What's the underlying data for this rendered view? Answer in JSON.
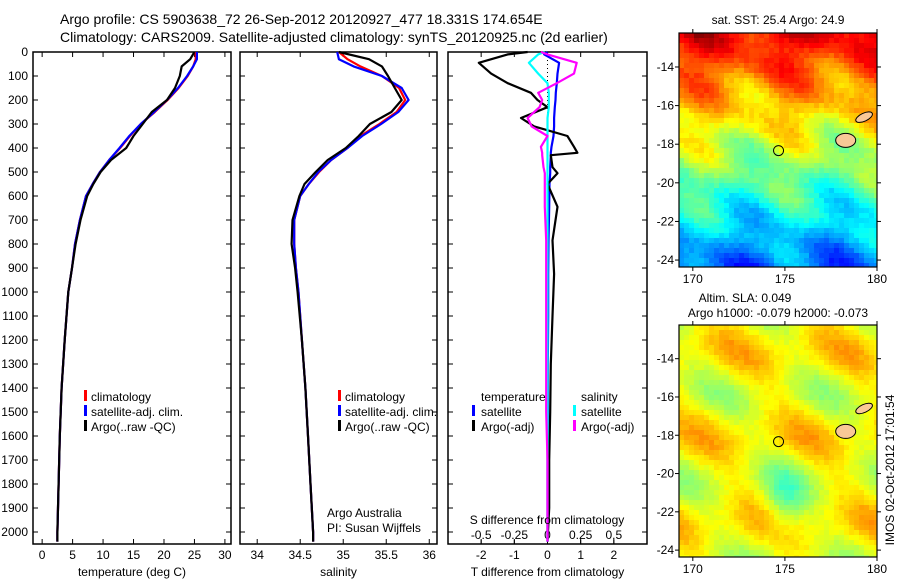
{
  "title": {
    "line1": "Argo profile: CS 5903638_72 26-Sep-2012 20120927_477 18.331S 174.654E",
    "line2": "Climatology: CARS2009. Satellite-adjusted climatology: synTS_20120925.nc (2d earlier)"
  },
  "credits": {
    "org": "Argo Australia",
    "pi": "PI: Susan Wijffels",
    "stamp": "IMOS 02-Oct-2012 17:01:54"
  },
  "colors": {
    "climatology": "#ff0000",
    "satellite": "#0000ff",
    "argo": "#000000",
    "sal_satellite": "#00ffff",
    "sal_argo": "#ff00ff"
  },
  "chart_data": [
    {
      "type": "line",
      "id": "temperature",
      "xlabel": "temperature (deg C)",
      "ylabel": "",
      "xlim": [
        -1.5,
        31
      ],
      "ylim": [
        2050,
        0
      ],
      "xticks": [
        0,
        5,
        10,
        15,
        20,
        25,
        30
      ],
      "xtick_labels": [
        "0",
        "5",
        "10",
        "15",
        "20",
        "25",
        "30"
      ],
      "yticks": [
        0,
        100,
        200,
        300,
        400,
        500,
        600,
        700,
        800,
        900,
        1000,
        1100,
        1200,
        1300,
        1400,
        1500,
        1600,
        1700,
        1800,
        1900,
        2000
      ],
      "yticks_labels": [
        "0",
        "100",
        "200",
        "300",
        "400",
        "500",
        "600",
        "700",
        "800",
        "900",
        "1000",
        "1100",
        "1200",
        "1300",
        "1400",
        "1500",
        "1600",
        "1700",
        "1800",
        "1900",
        "2000"
      ],
      "legend": [
        "climatology",
        "satellite-adj. clim.",
        "Argo(..raw -QC)"
      ],
      "depth": [
        0,
        30,
        60,
        100,
        150,
        200,
        250,
        300,
        350,
        400,
        450,
        500,
        550,
        600,
        700,
        800,
        900,
        1000,
        1200,
        1400,
        1600,
        1800,
        2000,
        2040
      ],
      "series": [
        {
          "name": "climatology",
          "color": "#ff0000",
          "values": [
            25.2,
            25.2,
            24.8,
            23.9,
            22.4,
            20.6,
            18.5,
            16.2,
            14.4,
            12.8,
            11.0,
            9.5,
            8.3,
            7.2,
            6.2,
            5.4,
            4.9,
            4.3,
            3.7,
            3.2,
            2.9,
            2.7,
            2.5,
            2.5
          ]
        },
        {
          "name": "satellite-adj. clim.",
          "color": "#0000ff",
          "values": [
            25.4,
            25.4,
            24.8,
            23.8,
            22.3,
            20.5,
            18.4,
            16.2,
            14.3,
            12.7,
            11.0,
            9.5,
            8.3,
            7.2,
            6.2,
            5.4,
            4.9,
            4.3,
            3.7,
            3.2,
            2.9,
            2.7,
            2.5,
            2.5
          ]
        },
        {
          "name": "Argo(..raw -QC)",
          "color": "#000000",
          "values": [
            25.0,
            24.3,
            22.9,
            22.6,
            21.8,
            20.5,
            18.0,
            16.5,
            15.0,
            13.8,
            11.3,
            9.6,
            8.4,
            7.4,
            6.3,
            5.5,
            4.9,
            4.3,
            3.7,
            3.2,
            2.9,
            2.7,
            2.5,
            2.5
          ]
        }
      ]
    },
    {
      "type": "line",
      "id": "salinity",
      "xlabel": "salinity",
      "xlim": [
        33.8,
        36.09
      ],
      "ylim": [
        2050,
        0
      ],
      "xticks": [
        34,
        34.5,
        35,
        35.5,
        36
      ],
      "xtick_labels": [
        "34",
        "34.5",
        "35",
        "35.5",
        "36"
      ],
      "legend": [
        "climatology",
        "satellite-adj. clim.",
        "Argo(..raw -QC)"
      ],
      "depth": [
        0,
        30,
        60,
        100,
        150,
        200,
        250,
        300,
        350,
        400,
        450,
        500,
        550,
        600,
        700,
        800,
        900,
        1000,
        1200,
        1400,
        1600,
        1800,
        2000,
        2040
      ],
      "series": [
        {
          "name": "climatology",
          "color": "#ff0000",
          "values": [
            34.95,
            35.05,
            35.2,
            35.45,
            35.65,
            35.72,
            35.62,
            35.42,
            35.2,
            35.05,
            34.86,
            34.72,
            34.6,
            34.5,
            34.43,
            34.43,
            34.45,
            34.48,
            34.52,
            34.56,
            34.59,
            34.62,
            34.65,
            34.65
          ]
        },
        {
          "name": "satellite-adj. clim.",
          "color": "#0000ff",
          "values": [
            34.93,
            34.95,
            35.12,
            35.45,
            35.68,
            35.76,
            35.64,
            35.44,
            35.22,
            35.05,
            34.86,
            34.71,
            34.6,
            34.5,
            34.43,
            34.43,
            34.45,
            34.48,
            34.52,
            34.56,
            34.59,
            34.62,
            34.65,
            34.65
          ]
        },
        {
          "name": "Argo(..raw -QC)",
          "color": "#000000",
          "values": [
            34.95,
            35.3,
            35.45,
            35.52,
            35.6,
            35.68,
            35.56,
            35.31,
            35.18,
            35.03,
            34.82,
            34.68,
            34.55,
            34.49,
            34.41,
            34.4,
            34.44,
            34.47,
            34.52,
            34.56,
            34.59,
            34.62,
            34.65,
            34.65
          ]
        }
      ]
    },
    {
      "type": "line",
      "id": "difference",
      "xlabel": "T difference from climatology",
      "xlabel2": "S difference from climatology",
      "xlim": [
        -3,
        3
      ],
      "xticks": [
        -2,
        -1,
        0,
        1,
        2
      ],
      "xtick_labels": [
        "-2",
        "-1",
        "0",
        "1",
        "2"
      ],
      "x2ticks": [
        -0.5,
        -0.25,
        0,
        0.25,
        0.5
      ],
      "x2tick_labels": [
        "-0.5",
        "-0.25",
        "0",
        "0.25",
        "0.5"
      ],
      "legend_headers": [
        "temperature",
        "salinity"
      ],
      "legend": [
        "satellite",
        "Argo(-adj)",
        "satellite",
        "Argo(-adj)"
      ],
      "depth": [
        0,
        10,
        45,
        90,
        130,
        170,
        200,
        230,
        275,
        310,
        350,
        395,
        420,
        430,
        480,
        505,
        550,
        645,
        785,
        925,
        1100,
        1300,
        1500,
        1700,
        1900,
        2040
      ],
      "series": [
        {
          "name": "T satellite",
          "color": "#0000ff",
          "var": "T",
          "values": [
            0.0,
            -0.1,
            0.35,
            0.3,
            0.28,
            0.25,
            0.24,
            0.22,
            0.2,
            0.2,
            0.18,
            0.12,
            0.1,
            0.1,
            0.08,
            0.08,
            0.06,
            0.05,
            0.03,
            0.02,
            0.02,
            0.01,
            0.01,
            0.0,
            0.0,
            0.0
          ]
        },
        {
          "name": "T Argo(-adj)",
          "color": "#000000",
          "var": "T",
          "values": [
            -0.6,
            -1.2,
            -2.07,
            -1.7,
            -1.2,
            -0.5,
            -0.3,
            0.0,
            -0.8,
            -0.4,
            0.6,
            0.8,
            0.9,
            0.1,
            0.15,
            0.3,
            0.0,
            0.3,
            0.15,
            0.2,
            0.15,
            0.1,
            0.08,
            0.05,
            0.05,
            0.0
          ]
        },
        {
          "name": "S satellite",
          "color": "#00ffff",
          "var": "S",
          "values": [
            -0.02,
            -0.07,
            -0.14,
            -0.07,
            0.0,
            0.01,
            0.01,
            0.01,
            0.0,
            0.0,
            0.0,
            0.0,
            0.0,
            0.0,
            0.0,
            0.0,
            0.0,
            0.0,
            0.0,
            0.0,
            0.0,
            0.0,
            0.0,
            0.0,
            0.0,
            0.0
          ]
        },
        {
          "name": "S Argo(-adj)",
          "color": "#ff00ff",
          "var": "S",
          "values": [
            -0.05,
            0.0,
            0.22,
            0.2,
            0.07,
            -0.07,
            -0.04,
            -0.06,
            -0.15,
            -0.12,
            0.0,
            -0.05,
            -0.04,
            -0.04,
            -0.03,
            -0.02,
            -0.02,
            -0.02,
            -0.01,
            -0.01,
            -0.01,
            -0.01,
            -0.01,
            0.0,
            0.0,
            0.0
          ]
        }
      ]
    },
    {
      "type": "heatmap",
      "id": "sst_map",
      "title": "sat. SST: 25.4  Argo: 24.9",
      "xlim": [
        169.25,
        180
      ],
      "ylim": [
        -24.36,
        -12.24
      ],
      "xticks": [
        170,
        175,
        180
      ],
      "xtick_labels": [
        "170",
        "175",
        "180"
      ],
      "yticks": [
        -14,
        -16,
        -18,
        -20,
        -22,
        -24
      ],
      "ytick_labels": [
        "-14",
        "-16",
        "-18",
        "-20",
        "-22",
        "-24"
      ],
      "argo_position": {
        "lon": 174.654,
        "lat": -18.331
      }
    },
    {
      "type": "heatmap",
      "id": "sla_map",
      "title": "Altim. SLA: 0.049",
      "subtitle": "Argo h1000: -0.079 h2000: -0.073",
      "xlim": [
        169.25,
        180
      ],
      "ylim": [
        -24.36,
        -12.24
      ],
      "xticks": [
        170,
        175,
        180
      ],
      "xtick_labels": [
        "170",
        "175",
        "180"
      ],
      "yticks": [
        -14,
        -16,
        -18,
        -20,
        -22,
        -24
      ],
      "ytick_labels": [
        "-14",
        "-16",
        "-18",
        "-20",
        "-22",
        "-24"
      ],
      "argo_position": {
        "lon": 174.654,
        "lat": -18.331
      }
    }
  ]
}
